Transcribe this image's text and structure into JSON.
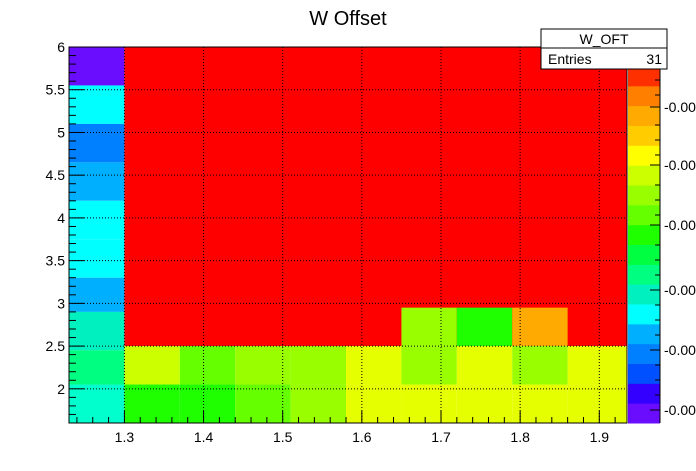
{
  "chart_data": {
    "type": "heatmap",
    "title": "W Offset",
    "xlabel": "",
    "ylabel": "",
    "xlim": [
      1.23,
      1.935
    ],
    "ylim": [
      1.6,
      6.0
    ],
    "x_ticks": [
      "1.3",
      "1.4",
      "1.5",
      "1.6",
      "1.7",
      "1.8",
      "1.9"
    ],
    "y_ticks": [
      "2",
      "2.5",
      "3",
      "3.5",
      "4",
      "4.5",
      "5",
      "5.5",
      "6"
    ],
    "z_ticks": [
      "-0.00",
      "-0.00",
      "-0.00",
      "-0.00",
      "-0.00",
      "-0.00"
    ],
    "grid": true,
    "stats_box": {
      "name": "W_OFT",
      "entries_label": "Entries",
      "entries_value": "31"
    },
    "palette": [
      "#6a0dff",
      "#3300ff",
      "#0050ff",
      "#0080ff",
      "#00b0ff",
      "#00ffff",
      "#00f0c0",
      "#00ff80",
      "#00ff40",
      "#20ff00",
      "#66ff00",
      "#99ff00",
      "#ccff00",
      "#ffff00",
      "#ffcc00",
      "#ffaa00",
      "#ff8000",
      "#ff3000"
    ],
    "cells": [
      {
        "x0": 1.23,
        "x1": 1.3,
        "y0": 5.55,
        "y1": 6.0,
        "color": "#6a0dff"
      },
      {
        "x0": 1.23,
        "x1": 1.3,
        "y0": 5.1,
        "y1": 5.55,
        "color": "#00ffff"
      },
      {
        "x0": 1.23,
        "x1": 1.3,
        "y0": 4.65,
        "y1": 5.1,
        "color": "#0080ff"
      },
      {
        "x0": 1.23,
        "x1": 1.3,
        "y0": 4.2,
        "y1": 4.65,
        "color": "#00b0ff"
      },
      {
        "x0": 1.23,
        "x1": 1.3,
        "y0": 3.75,
        "y1": 4.2,
        "color": "#00ffff"
      },
      {
        "x0": 1.23,
        "x1": 1.3,
        "y0": 3.3,
        "y1": 3.75,
        "color": "#00ffff"
      },
      {
        "x0": 1.23,
        "x1": 1.3,
        "y0": 2.9,
        "y1": 3.3,
        "color": "#00b0ff"
      },
      {
        "x0": 1.23,
        "x1": 1.3,
        "y0": 2.45,
        "y1": 2.9,
        "color": "#00f0c0"
      },
      {
        "x0": 1.23,
        "x1": 1.3,
        "y0": 2.05,
        "y1": 2.45,
        "color": "#00ff80"
      },
      {
        "x0": 1.23,
        "x1": 1.3,
        "y0": 1.6,
        "y1": 2.05,
        "color": "#00ffcc"
      },
      {
        "x0": 1.3,
        "x1": 1.935,
        "y0": 2.5,
        "y1": 6.0,
        "color": "#ff0000"
      },
      {
        "x0": 1.65,
        "x1": 1.72,
        "y0": 2.5,
        "y1": 2.95,
        "color": "#99ff00"
      },
      {
        "x0": 1.72,
        "x1": 1.79,
        "y0": 2.5,
        "y1": 2.95,
        "color": "#20ff00"
      },
      {
        "x0": 1.79,
        "x1": 1.86,
        "y0": 2.5,
        "y1": 2.95,
        "color": "#ffaa00"
      },
      {
        "x0": 1.3,
        "x1": 1.37,
        "y0": 2.05,
        "y1": 2.5,
        "color": "#ccff00"
      },
      {
        "x0": 1.37,
        "x1": 1.44,
        "y0": 2.05,
        "y1": 2.5,
        "color": "#66ff00"
      },
      {
        "x0": 1.44,
        "x1": 1.51,
        "y0": 2.05,
        "y1": 2.5,
        "color": "#99ff00"
      },
      {
        "x0": 1.51,
        "x1": 1.58,
        "y0": 2.05,
        "y1": 2.5,
        "color": "#99ff00"
      },
      {
        "x0": 1.58,
        "x1": 1.65,
        "y0": 2.05,
        "y1": 2.5,
        "color": "#e6ff00"
      },
      {
        "x0": 1.65,
        "x1": 1.72,
        "y0": 2.05,
        "y1": 2.5,
        "color": "#99ff00"
      },
      {
        "x0": 1.72,
        "x1": 1.79,
        "y0": 2.05,
        "y1": 2.5,
        "color": "#e6ff00"
      },
      {
        "x0": 1.79,
        "x1": 1.86,
        "y0": 2.05,
        "y1": 2.5,
        "color": "#99ff00"
      },
      {
        "x0": 1.86,
        "x1": 1.935,
        "y0": 2.05,
        "y1": 2.5,
        "color": "#e6ff00"
      },
      {
        "x0": 1.3,
        "x1": 1.37,
        "y0": 1.6,
        "y1": 2.05,
        "color": "#20ff00"
      },
      {
        "x0": 1.37,
        "x1": 1.44,
        "y0": 1.6,
        "y1": 2.05,
        "color": "#20ff00"
      },
      {
        "x0": 1.44,
        "x1": 1.51,
        "y0": 1.6,
        "y1": 2.05,
        "color": "#66ff00"
      },
      {
        "x0": 1.51,
        "x1": 1.58,
        "y0": 1.6,
        "y1": 2.05,
        "color": "#99ff00"
      },
      {
        "x0": 1.58,
        "x1": 1.65,
        "y0": 1.6,
        "y1": 2.05,
        "color": "#e6ff00"
      },
      {
        "x0": 1.65,
        "x1": 1.72,
        "y0": 1.6,
        "y1": 2.05,
        "color": "#e6ff00"
      },
      {
        "x0": 1.72,
        "x1": 1.79,
        "y0": 1.6,
        "y1": 2.05,
        "color": "#e6ff00"
      },
      {
        "x0": 1.79,
        "x1": 1.86,
        "y0": 1.6,
        "y1": 2.05,
        "color": "#e6ff00"
      },
      {
        "x0": 1.86,
        "x1": 1.935,
        "y0": 1.6,
        "y1": 2.05,
        "color": "#e6ff00"
      }
    ]
  }
}
